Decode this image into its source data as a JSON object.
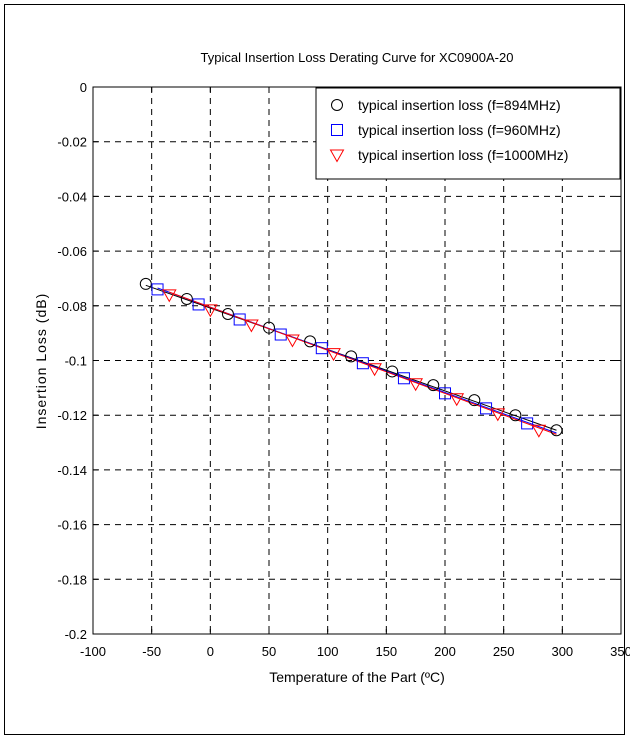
{
  "chart_data": {
    "type": "scatter",
    "title": "Typical Insertion Loss Derating Curve for XC0900A-20",
    "xlabel": "Temperature of the Part (ºC)",
    "ylabel": "Insertion Loss (dB)",
    "xlim": [
      -100,
      350
    ],
    "ylim": [
      -0.2,
      0
    ],
    "xticks": [
      -100,
      -50,
      0,
      50,
      100,
      150,
      200,
      250,
      300,
      350
    ],
    "xtick_labels": [
      "-100",
      "-50",
      "0",
      "50",
      "100",
      "150",
      "200",
      "250",
      "300",
      "350"
    ],
    "yticks": [
      0,
      -0.02,
      -0.04,
      -0.06,
      -0.08,
      -0.1,
      -0.12,
      -0.14,
      -0.16,
      -0.18,
      -0.2
    ],
    "ytick_labels": [
      "0",
      "-0.02",
      "-0.04",
      "-0.06",
      "-0.08",
      "-0.1",
      "-0.12",
      "-0.14",
      "-0.16",
      "-0.18",
      "-0.2"
    ],
    "grid": true,
    "legend_position": "top-right",
    "series": [
      {
        "name": "typical insertion loss (f=894MHz)",
        "marker": "circle",
        "color": "#000000",
        "x": [
          -55,
          -20,
          15,
          50,
          85,
          120,
          155,
          190,
          225,
          260,
          295
        ],
        "y": [
          -0.072,
          -0.0775,
          -0.083,
          -0.088,
          -0.093,
          -0.0985,
          -0.104,
          -0.109,
          -0.1145,
          -0.12,
          -0.1255
        ]
      },
      {
        "name": "typical insertion loss (f=960MHz)",
        "marker": "square",
        "color": "#0000ff",
        "x": [
          -45,
          -10,
          25,
          60,
          95,
          130,
          165,
          200,
          235,
          270
        ],
        "y": [
          -0.074,
          -0.0795,
          -0.085,
          -0.0905,
          -0.0955,
          -0.101,
          -0.1065,
          -0.112,
          -0.1175,
          -0.123
        ]
      },
      {
        "name": "typical insertion loss (f=1000MHz)",
        "marker": "triangle-down",
        "color": "#ff0000",
        "x": [
          -35,
          0,
          35,
          70,
          105,
          140,
          175,
          210,
          245,
          280
        ],
        "y": [
          -0.076,
          -0.0815,
          -0.087,
          -0.0925,
          -0.0975,
          -0.103,
          -0.1085,
          -0.114,
          -0.1195,
          -0.1255
        ]
      }
    ],
    "fit_lines": [
      {
        "color": "#000000",
        "x": [
          -55,
          295
        ],
        "y": [
          -0.0725,
          -0.1255
        ]
      },
      {
        "color": "#0000ff",
        "x": [
          -45,
          295
        ],
        "y": [
          -0.0735,
          -0.1265
        ]
      },
      {
        "color": "#ff0000",
        "x": [
          -35,
          295
        ],
        "y": [
          -0.075,
          -0.127
        ]
      }
    ]
  }
}
